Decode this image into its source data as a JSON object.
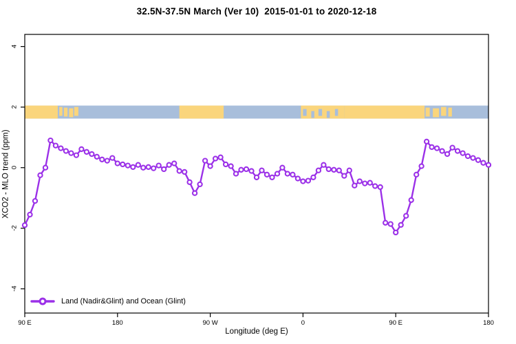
{
  "title": "32.5N-37.5N March (Ver 10)  2015-01-01 to 2020-12-18",
  "axis": {
    "xlabel": "Longitude (deg E)",
    "ylabel": "XCO2 - MLO trend (ppm)",
    "x_ticks": [
      {
        "value": 90,
        "label": "90 E"
      },
      {
        "value": 180,
        "label": "180"
      },
      {
        "value": 270,
        "label": "90 W"
      },
      {
        "value": 360,
        "label": "0"
      },
      {
        "value": 450,
        "label": "90 E"
      },
      {
        "value": 540,
        "label": "180"
      }
    ],
    "y_ticks": [
      {
        "value": -4,
        "label": "-4"
      },
      {
        "value": -2,
        "label": "-2"
      },
      {
        "value": 0,
        "label": "0"
      },
      {
        "value": 2,
        "label": "2"
      },
      {
        "value": 4,
        "label": "4"
      }
    ],
    "xlim": [
      90,
      540
    ],
    "ylim": [
      -4.8,
      4.4
    ]
  },
  "legend": {
    "label": "Land (Nadir&Glint) and Ocean (Glint)",
    "position": "bottom-left"
  },
  "colors": {
    "series": "#9B30E8",
    "marker_fill": "#FFFFFF",
    "land": "#FAD57C",
    "ocean": "#A8BEDB",
    "axis": "#000000",
    "background": "#FFFFFF"
  },
  "map_strip": {
    "description": "world land/ocean band for 32.5N-37.5N plotted at y ~ +2 ppm",
    "top_value": 2.05,
    "bottom_value": 1.62,
    "ocean_span": [
      90,
      540
    ],
    "land_segments": [
      [
        90,
        122
      ],
      [
        240,
        283
      ],
      [
        358,
        400
      ],
      [
        400,
        478
      ]
    ],
    "island_segments": [
      [
        123.5,
        126.5
      ],
      [
        128,
        131.5
      ],
      [
        133,
        137
      ],
      [
        138,
        142
      ],
      [
        479,
        483
      ],
      [
        486,
        492
      ],
      [
        494,
        499
      ],
      [
        501,
        504.5
      ]
    ],
    "sea_notches": [
      [
        360,
        363.5
      ],
      [
        368,
        371
      ],
      [
        375,
        378.5
      ],
      [
        383,
        386
      ],
      [
        391,
        394
      ]
    ]
  },
  "chart_data": {
    "type": "line",
    "series_name": "Land (Nadir&Glint) and Ocean (Glint)",
    "marker": "open-circle",
    "title": "32.5N-37.5N March (Ver 10)  2015-01-01 to 2020-12-18",
    "xlabel": "Longitude (deg E)",
    "ylabel": "XCO2 - MLO trend (ppm)",
    "xlim": [
      90,
      540
    ],
    "ylim": [
      -4.8,
      4.4
    ],
    "grid": false,
    "legend_position": "bottom-left",
    "x": [
      90,
      95,
      100,
      105,
      110,
      115,
      120,
      125,
      130,
      135,
      140,
      145,
      150,
      155,
      160,
      165,
      170,
      175,
      180,
      185,
      190,
      195,
      200,
      205,
      210,
      215,
      220,
      225,
      230,
      235,
      240,
      245,
      250,
      255,
      260,
      265,
      270,
      275,
      280,
      285,
      290,
      295,
      300,
      305,
      310,
      315,
      320,
      325,
      330,
      335,
      340,
      345,
      350,
      355,
      360,
      365,
      370,
      375,
      380,
      385,
      390,
      395,
      400,
      405,
      410,
      415,
      420,
      425,
      430,
      435,
      440,
      445,
      450,
      455,
      460,
      465,
      470,
      475,
      480,
      485,
      490,
      495,
      500,
      505,
      510,
      515,
      520,
      525,
      530,
      535,
      540
    ],
    "values": [
      -1.9,
      -1.55,
      -1.1,
      -0.25,
      0.0,
      0.9,
      0.73,
      0.64,
      0.55,
      0.48,
      0.41,
      0.61,
      0.52,
      0.45,
      0.36,
      0.27,
      0.23,
      0.32,
      0.14,
      0.11,
      0.07,
      0.02,
      0.09,
      0.0,
      0.02,
      -0.02,
      0.07,
      -0.05,
      0.09,
      0.14,
      -0.11,
      -0.14,
      -0.48,
      -0.84,
      -0.55,
      0.23,
      0.05,
      0.3,
      0.34,
      0.11,
      0.05,
      -0.2,
      -0.07,
      -0.05,
      -0.11,
      -0.32,
      -0.09,
      -0.23,
      -0.32,
      -0.2,
      0.0,
      -0.2,
      -0.23,
      -0.36,
      -0.45,
      -0.43,
      -0.32,
      -0.09,
      0.09,
      -0.05,
      -0.07,
      -0.09,
      -0.27,
      -0.09,
      -0.59,
      -0.45,
      -0.52,
      -0.5,
      -0.61,
      -0.64,
      -1.82,
      -1.86,
      -2.14,
      -1.89,
      -1.59,
      -1.07,
      -0.23,
      0.05,
      0.86,
      0.68,
      0.64,
      0.55,
      0.45,
      0.66,
      0.55,
      0.48,
      0.38,
      0.32,
      0.25,
      0.16,
      0.09
    ]
  }
}
